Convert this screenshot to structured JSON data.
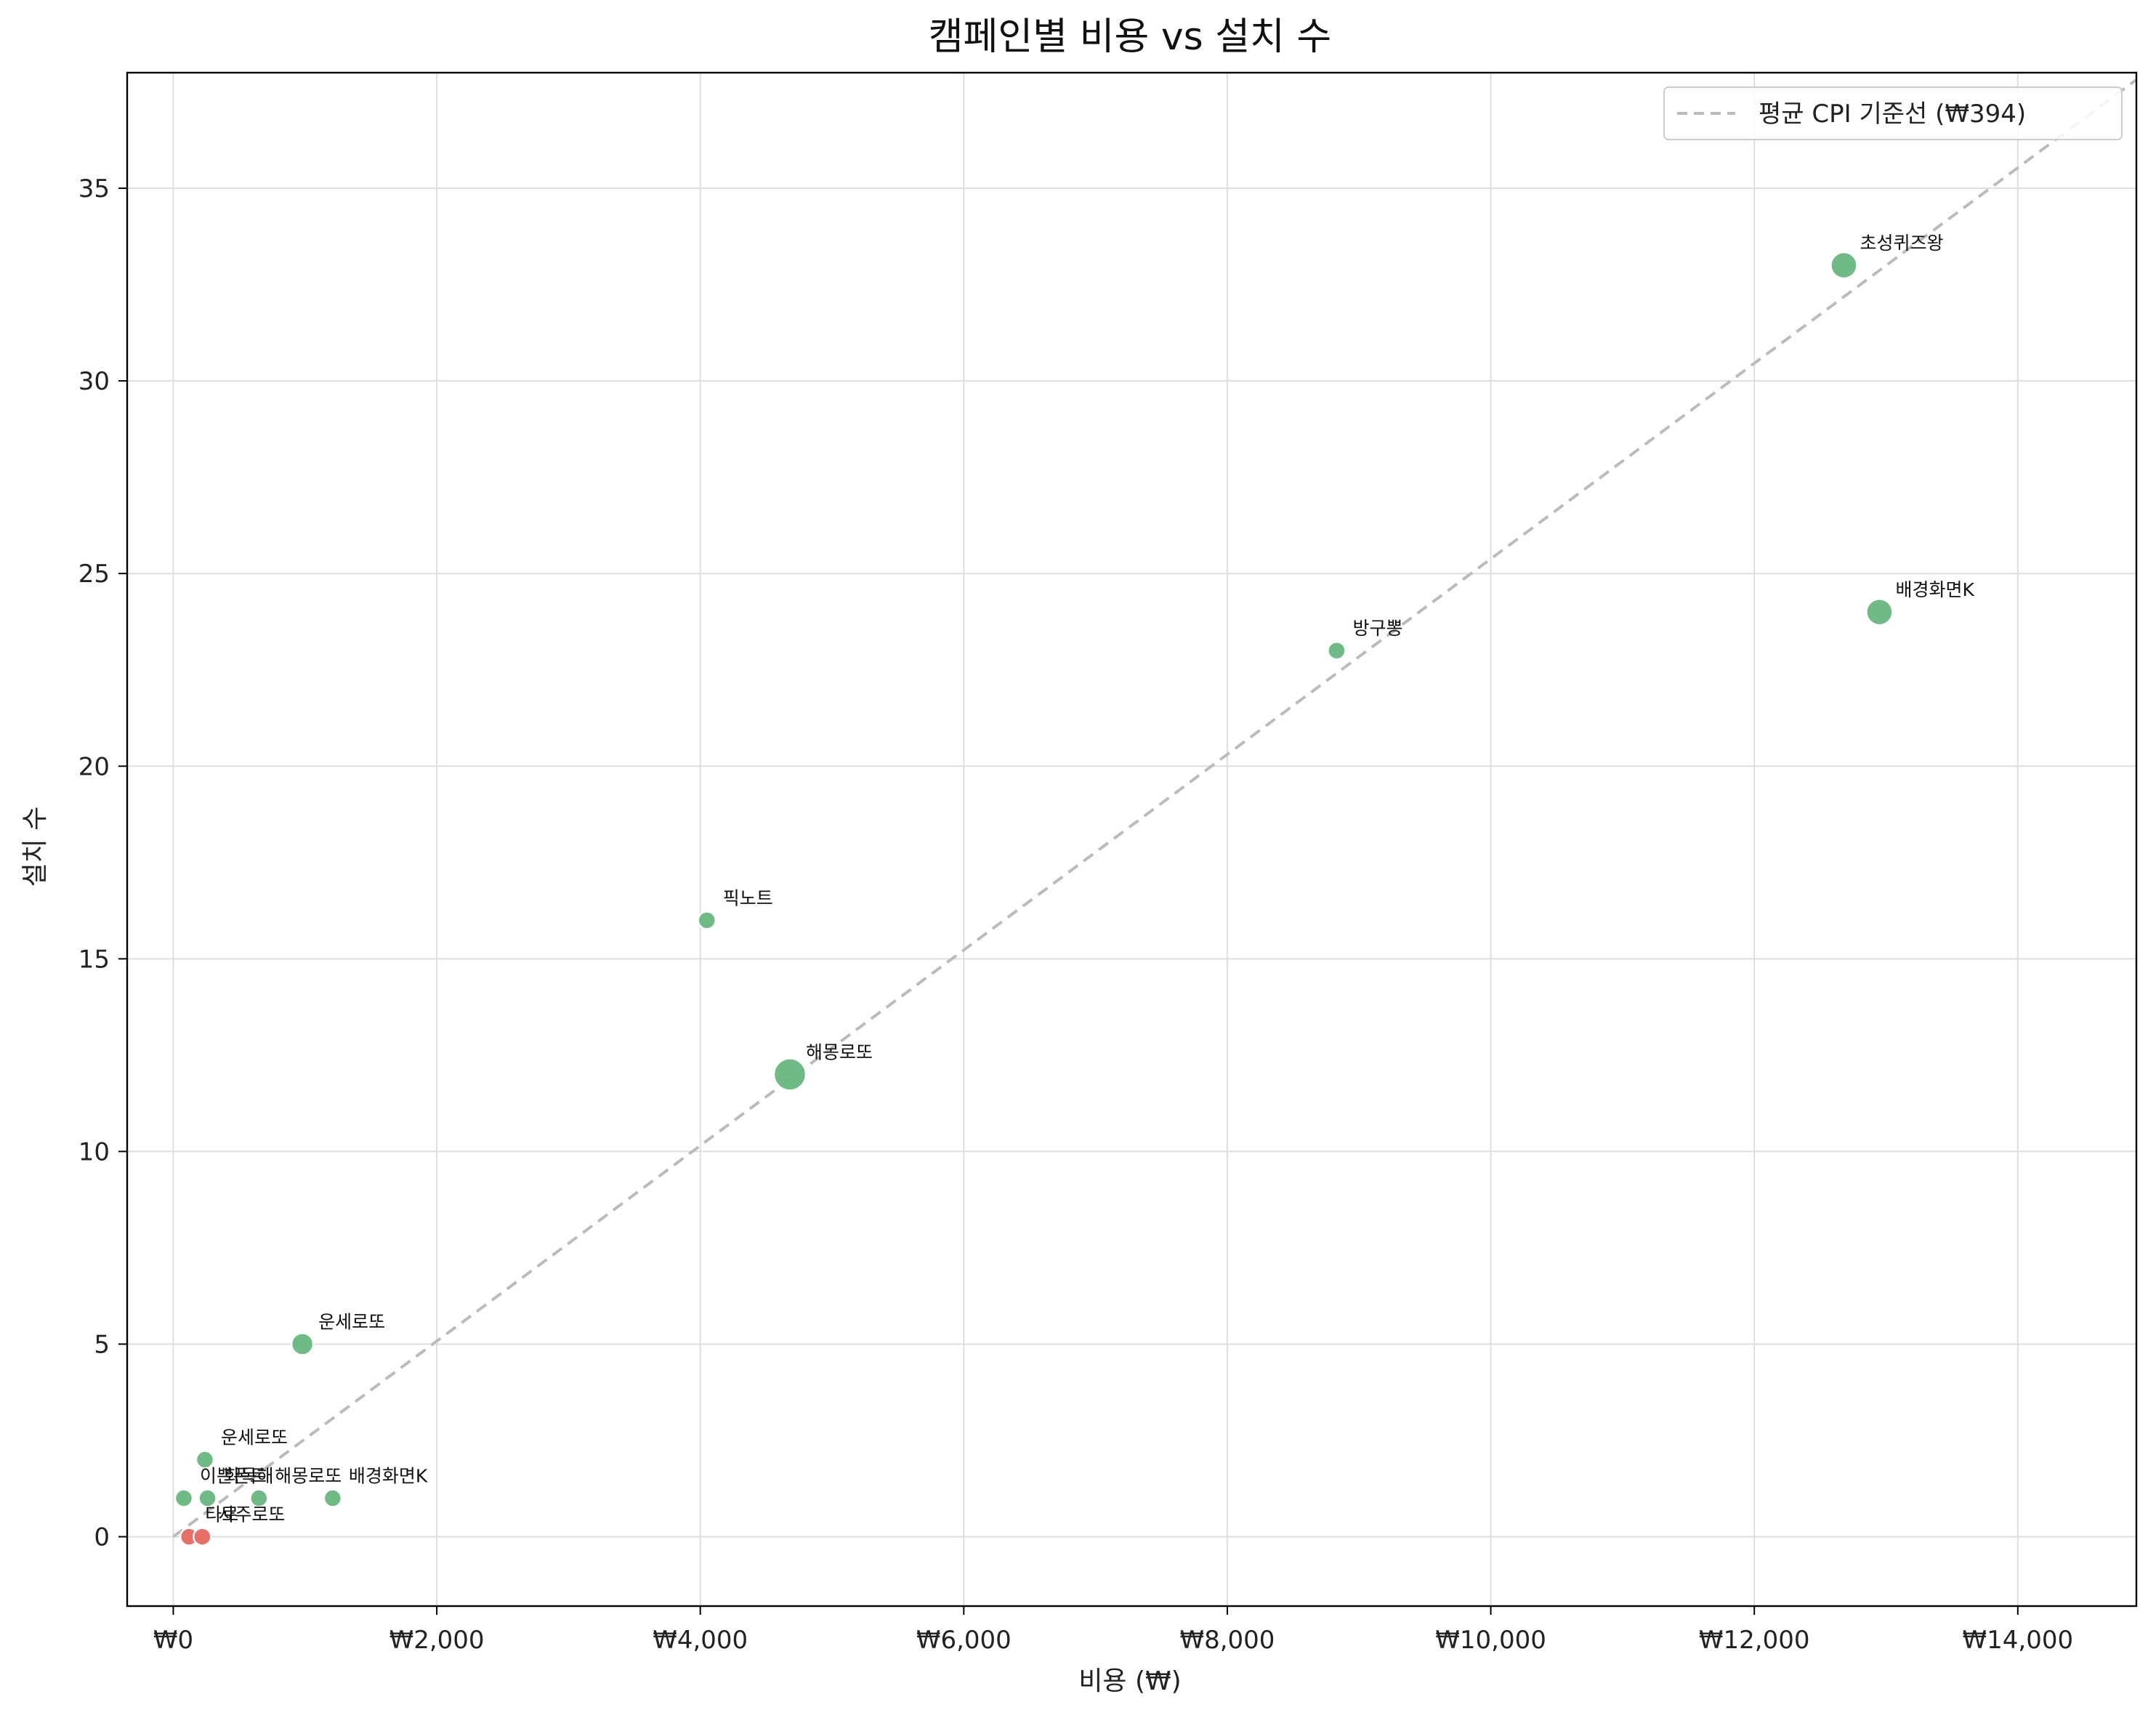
{
  "chart_data": {
    "type": "scatter",
    "title": "캠페인별 비용 vs 설치 수",
    "xlabel": "비용 (₩)",
    "ylabel": "설치 수",
    "xlim": [
      -350,
      14900
    ],
    "ylim": [
      -1.8,
      38
    ],
    "x_ticks": [
      0,
      2000,
      4000,
      6000,
      8000,
      10000,
      12000,
      14000
    ],
    "x_tick_labels": [
      "₩0",
      "₩2,000",
      "₩4,000",
      "₩6,000",
      "₩8,000",
      "₩10,000",
      "₩12,000",
      "₩14,000"
    ],
    "y_ticks": [
      0,
      5,
      10,
      15,
      20,
      25,
      30,
      35
    ],
    "y_tick_labels": [
      "0",
      "5",
      "10",
      "15",
      "20",
      "25",
      "30",
      "35"
    ],
    "grid": true,
    "legend": {
      "placement": "top-right",
      "entries": [
        {
          "label": "평균 CPI 기준선 (₩394)",
          "style": "dashed",
          "color": "#bbbbbb"
        }
      ]
    },
    "reference_line": {
      "cpi": 394,
      "x_start": 0,
      "x_end": 14900,
      "color": "#bbbbbb"
    },
    "colors": {
      "positive": "#66b77e",
      "zero": "#e8675f"
    },
    "points": [
      {
        "label": "초성퀴즈왕",
        "x": 12680,
        "y": 33,
        "size": "large",
        "color": "positive"
      },
      {
        "label": "배경화면K",
        "x": 12950,
        "y": 24,
        "size": "large",
        "color": "positive"
      },
      {
        "label": "방구뽕",
        "x": 8830,
        "y": 23,
        "size": "small",
        "color": "positive"
      },
      {
        "label": "픽노트",
        "x": 4050,
        "y": 16,
        "size": "small",
        "color": "positive"
      },
      {
        "label": "해몽로또",
        "x": 4680,
        "y": 12,
        "size": "xlarge",
        "color": "positive"
      },
      {
        "label": "운세로또",
        "x": 980,
        "y": 5,
        "size": "medium",
        "color": "positive"
      },
      {
        "label": "운세로또",
        "x": 240,
        "y": 2,
        "size": "small",
        "color": "positive"
      },
      {
        "label": "이쁜폰트",
        "x": 80,
        "y": 1,
        "size": "small",
        "color": "positive"
      },
      {
        "label": "화목해",
        "x": 260,
        "y": 1,
        "size": "small",
        "color": "positive"
      },
      {
        "label": "해몽로또",
        "x": 650,
        "y": 1,
        "size": "small",
        "color": "positive"
      },
      {
        "label": "배경화면K",
        "x": 1210,
        "y": 1,
        "size": "small",
        "color": "positive"
      },
      {
        "label": "타로",
        "x": 120,
        "y": 0,
        "size": "small",
        "color": "zero"
      },
      {
        "label": "사주로또",
        "x": 220,
        "y": 0,
        "size": "small",
        "color": "zero"
      }
    ]
  }
}
